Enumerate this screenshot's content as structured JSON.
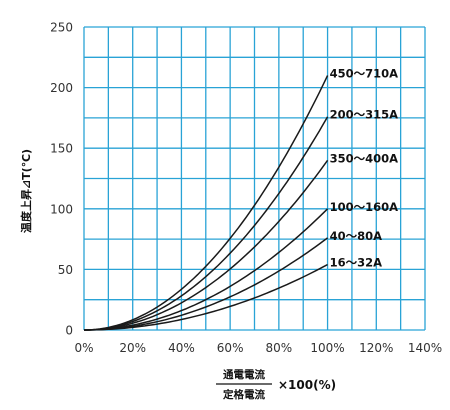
{
  "chart_data": {
    "type": "line",
    "ylabel": "温度上昇⊿T(℃)",
    "xlabel": {
      "numerator": "通電電流",
      "denominator": "定格電流",
      "suffix": "×100(%)"
    },
    "xlim": [
      0,
      140
    ],
    "ylim": [
      0,
      250
    ],
    "x_ticks": [
      0,
      10,
      20,
      30,
      40,
      50,
      60,
      70,
      80,
      90,
      100,
      110,
      120,
      130,
      140
    ],
    "x_tick_labels": [
      "0%",
      "20%",
      "40%",
      "60%",
      "80%",
      "100%",
      "120%",
      "140%"
    ],
    "y_ticks": [
      0,
      25,
      50,
      75,
      100,
      125,
      150,
      175,
      200,
      225,
      250
    ],
    "y_tick_labels": [
      "0",
      "50",
      "100",
      "150",
      "200",
      "250"
    ],
    "grid": true,
    "colors": {
      "grid": "#29a3d6",
      "line": "#1a1a1a"
    },
    "series": [
      {
        "name": "450～710A",
        "x": [
          0,
          100
        ],
        "y": [
          0,
          210
        ]
      },
      {
        "name": "200～315A",
        "x": [
          0,
          100
        ],
        "y": [
          0,
          176
        ]
      },
      {
        "name": "350～400A",
        "x": [
          0,
          100
        ],
        "y": [
          0,
          140
        ]
      },
      {
        "name": "100～160A",
        "x": [
          0,
          100
        ],
        "y": [
          0,
          100
        ]
      },
      {
        "name": "40～80A",
        "x": [
          0,
          100
        ],
        "y": [
          0,
          76
        ]
      },
      {
        "name": "16～32A",
        "x": [
          0,
          100
        ],
        "y": [
          0,
          54
        ]
      }
    ]
  }
}
